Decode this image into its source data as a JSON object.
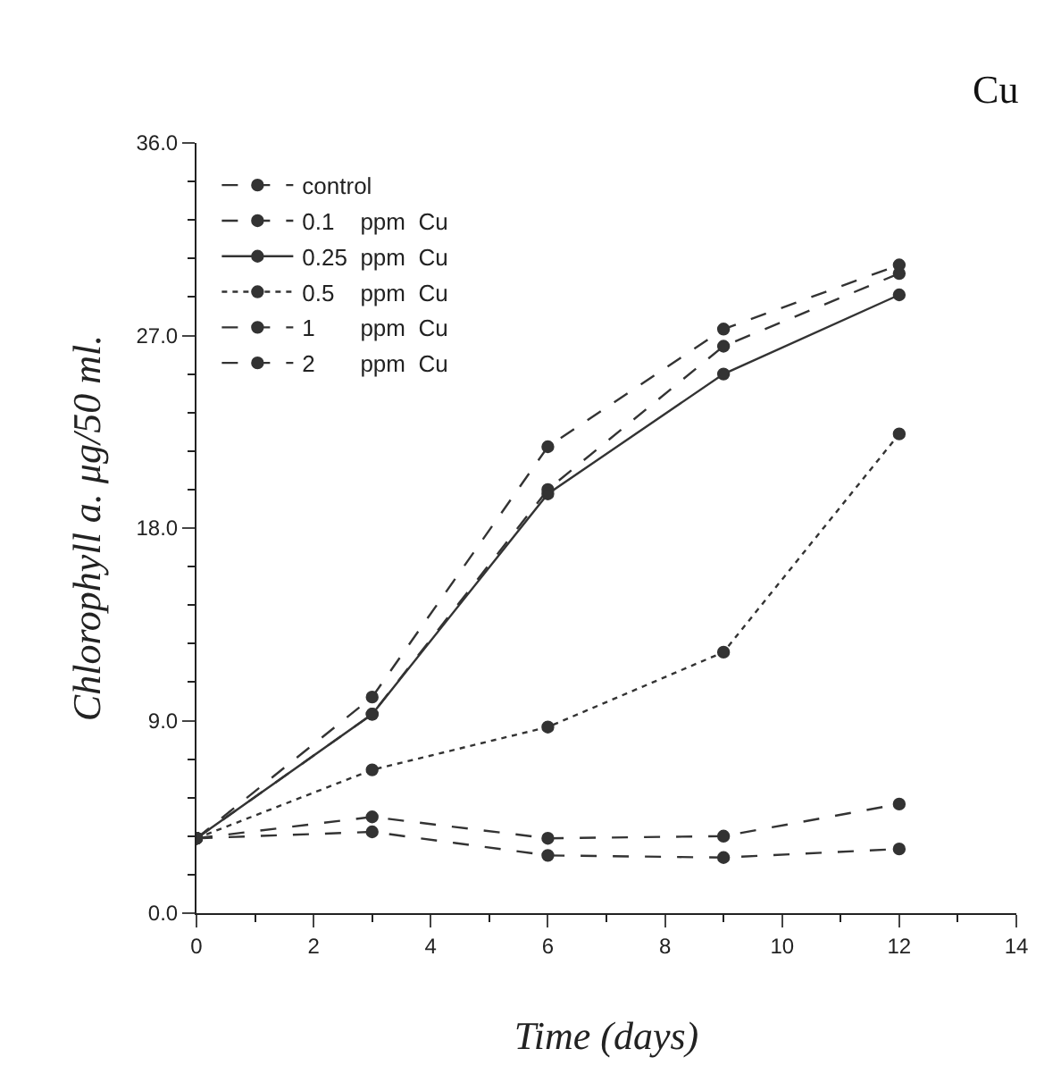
{
  "chart_data": {
    "type": "line",
    "title": "Cu",
    "xlabel": "Time (days)",
    "ylabel": "Chlorophyll a. μg/50 ml.",
    "x": [
      0,
      3,
      6,
      9,
      12
    ],
    "series": [
      {
        "name": "control",
        "color": "#333333",
        "line_style": "dashed",
        "values": [
          3.5,
          10.1,
          21.8,
          27.3,
          30.3
        ]
      },
      {
        "name": "0.1    ppm  Cu",
        "color": "#333333",
        "line_style": "dashed",
        "values": [
          3.5,
          9.3,
          19.8,
          26.5,
          29.9
        ]
      },
      {
        "name": "0.25  ppm  Cu",
        "color": "#333333",
        "line_style": "solid",
        "values": [
          3.5,
          9.3,
          19.6,
          25.2,
          28.9
        ]
      },
      {
        "name": "0.5    ppm  Cu",
        "color": "#333333",
        "line_style": "dotted",
        "values": [
          3.5,
          6.7,
          8.7,
          12.2,
          22.4
        ]
      },
      {
        "name": "1       ppm  Cu",
        "color": "#333333",
        "line_style": "dashed",
        "values": [
          3.5,
          4.5,
          3.5,
          3.6,
          5.1
        ]
      },
      {
        "name": "2       ppm  Cu",
        "color": "#333333",
        "line_style": "dashed",
        "values": [
          3.5,
          3.8,
          2.7,
          2.6,
          3.0
        ]
      }
    ],
    "xlim": [
      0,
      14
    ],
    "xticks": [
      0,
      2,
      4,
      6,
      8,
      10,
      12,
      14
    ],
    "ylim": [
      0,
      36
    ],
    "yticks": [
      {
        "value": 0,
        "label": "0.0"
      },
      {
        "value": 9,
        "label": "9.0"
      },
      {
        "value": 18,
        "label": "18.0"
      },
      {
        "value": 27,
        "label": "27.0"
      },
      {
        "value": 36,
        "label": "36.0"
      }
    ],
    "legend": "top left",
    "marker": "circle",
    "grid": false
  }
}
